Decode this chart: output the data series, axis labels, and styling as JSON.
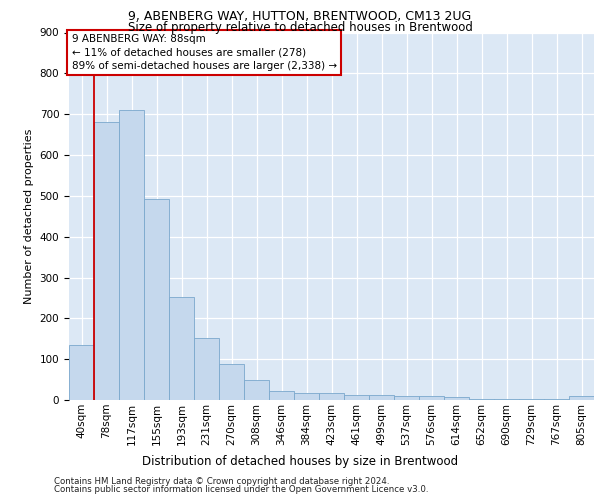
{
  "title1": "9, ABENBERG WAY, HUTTON, BRENTWOOD, CM13 2UG",
  "title2": "Size of property relative to detached houses in Brentwood",
  "xlabel": "Distribution of detached houses by size in Brentwood",
  "ylabel": "Number of detached properties",
  "categories": [
    "40sqm",
    "78sqm",
    "117sqm",
    "155sqm",
    "193sqm",
    "231sqm",
    "270sqm",
    "308sqm",
    "346sqm",
    "384sqm",
    "423sqm",
    "461sqm",
    "499sqm",
    "537sqm",
    "576sqm",
    "614sqm",
    "652sqm",
    "690sqm",
    "729sqm",
    "767sqm",
    "805sqm"
  ],
  "values": [
    135,
    680,
    710,
    492,
    252,
    152,
    88,
    50,
    22,
    18,
    18,
    12,
    12,
    10,
    10,
    8,
    2,
    2,
    2,
    2,
    10
  ],
  "bar_color": "#c5d8ed",
  "bar_edge_color": "#7aa8cd",
  "annotation_text": "9 ABENBERG WAY: 88sqm\n← 11% of detached houses are smaller (278)\n89% of semi-detached houses are larger (2,338) →",
  "red_line_color": "#cc0000",
  "footer1": "Contains HM Land Registry data © Crown copyright and database right 2024.",
  "footer2": "Contains public sector information licensed under the Open Government Licence v3.0.",
  "ylim_max": 900,
  "background_color": "#dce8f5",
  "title1_fontsize": 9,
  "title2_fontsize": 8.5,
  "ylabel_fontsize": 8,
  "xlabel_fontsize": 8.5,
  "tick_fontsize": 7.5,
  "footer_fontsize": 6.2,
  "annot_fontsize": 7.5
}
